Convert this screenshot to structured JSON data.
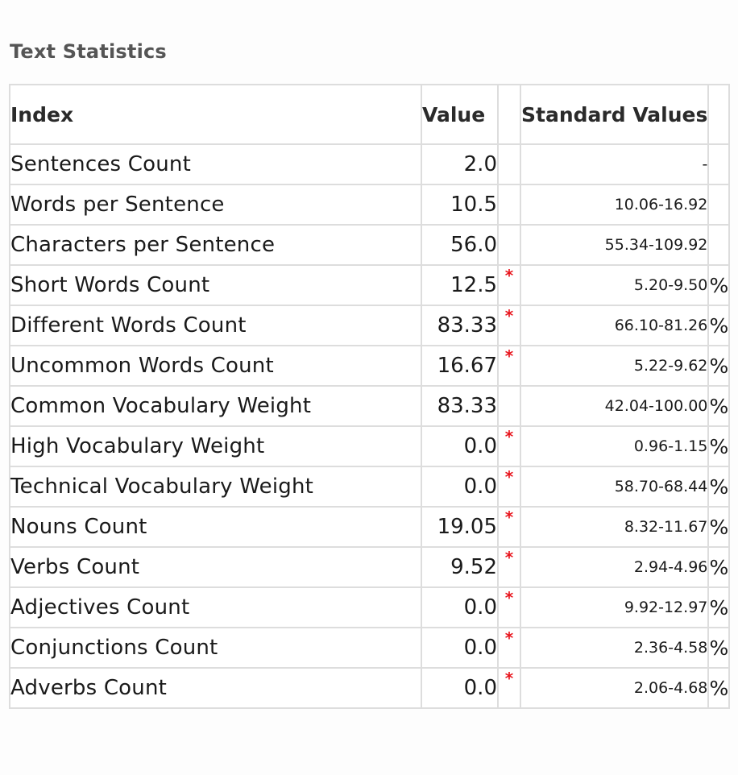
{
  "page": {
    "title": "Text Statistics"
  },
  "table": {
    "headers": {
      "index": "Index",
      "value": "Value",
      "flag": "",
      "standard_values": "Standard Values",
      "unit": ""
    },
    "flag_color": "#e8141c",
    "rows": [
      {
        "index": "Sentences Count",
        "value": "2.0",
        "flag": "",
        "standard": "-",
        "unit": ""
      },
      {
        "index": "Words per Sentence",
        "value": "10.5",
        "flag": "",
        "standard": "10.06-16.92",
        "unit": ""
      },
      {
        "index": "Characters per Sentence",
        "value": "56.0",
        "flag": "",
        "standard": "55.34-109.92",
        "unit": ""
      },
      {
        "index": "Short Words Count",
        "value": "12.5",
        "flag": "*",
        "standard": "5.20-9.50",
        "unit": "%"
      },
      {
        "index": "Different Words Count",
        "value": "83.33",
        "flag": "*",
        "standard": "66.10-81.26",
        "unit": "%"
      },
      {
        "index": "Uncommon Words Count",
        "value": "16.67",
        "flag": "*",
        "standard": "5.22-9.62",
        "unit": "%"
      },
      {
        "index": "Common Vocabulary Weight",
        "value": "83.33",
        "flag": "",
        "standard": "42.04-100.00",
        "unit": "%"
      },
      {
        "index": "High Vocabulary Weight",
        "value": "0.0",
        "flag": "*",
        "standard": "0.96-1.15",
        "unit": "%"
      },
      {
        "index": "Technical Vocabulary Weight",
        "value": "0.0",
        "flag": "*",
        "standard": "58.70-68.44",
        "unit": "%"
      },
      {
        "index": "Nouns Count",
        "value": "19.05",
        "flag": "*",
        "standard": "8.32-11.67",
        "unit": "%"
      },
      {
        "index": "Verbs Count",
        "value": "9.52",
        "flag": "*",
        "standard": "2.94-4.96",
        "unit": "%"
      },
      {
        "index": "Adjectives Count",
        "value": "0.0",
        "flag": "*",
        "standard": "9.92-12.97",
        "unit": "%"
      },
      {
        "index": "Conjunctions Count",
        "value": "0.0",
        "flag": "*",
        "standard": "2.36-4.58",
        "unit": "%"
      },
      {
        "index": "Adverbs Count",
        "value": "0.0",
        "flag": "*",
        "standard": "2.06-4.68",
        "unit": "%"
      }
    ]
  }
}
